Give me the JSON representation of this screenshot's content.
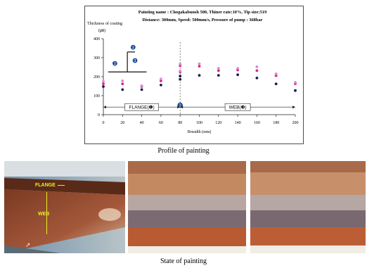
{
  "chart_data": {
    "type": "scatter",
    "header_line1": "Painting name : Chogakabunsh 500, Thiner rate:10%, Tip size:519",
    "header_line2": "Distance: 300mm, Speed: 500mm/s, Pressure of pump : 368bar",
    "ylabel": "Thickness of coating",
    "yunit": "(㎛)",
    "xlabel": "Breadth (mm)",
    "xlim": [
      0,
      200
    ],
    "ylim": [
      0,
      400
    ],
    "xticks": [
      "0",
      "20",
      "40",
      "60",
      "80",
      "100",
      "120",
      "140",
      "160",
      "180",
      "200"
    ],
    "yticks": [
      "0",
      "100",
      "200",
      "300",
      "400"
    ],
    "grid": false,
    "regions": [
      {
        "label": "FLANGE(❶)",
        "x_start": 0,
        "x_end": 80
      },
      {
        "label": "WEB(❸)",
        "x_start": 80,
        "x_end": 200
      }
    ],
    "divider_x": 80,
    "divider_marker": "❷",
    "inset_markers": [
      "❶",
      "❷",
      "❸"
    ],
    "series": [
      {
        "color": "#1a1a4d",
        "points": [
          [
            0,
            148
          ],
          [
            20,
            132
          ],
          [
            40,
            132
          ],
          [
            60,
            156
          ],
          [
            80,
            186
          ],
          [
            80,
            203
          ],
          [
            100,
            207
          ],
          [
            120,
            207
          ],
          [
            140,
            210
          ],
          [
            160,
            193
          ],
          [
            180,
            162
          ],
          [
            200,
            127
          ]
        ]
      },
      {
        "color": "#e0227a",
        "points": [
          [
            0,
            163
          ],
          [
            20,
            162
          ],
          [
            40,
            148
          ],
          [
            60,
            178
          ],
          [
            80,
            225
          ],
          [
            80,
            258
          ],
          [
            100,
            255
          ],
          [
            120,
            232
          ],
          [
            140,
            235
          ],
          [
            160,
            232
          ],
          [
            180,
            205
          ],
          [
            200,
            163
          ]
        ]
      },
      {
        "color": "#d68ad6",
        "points": [
          [
            0,
            175
          ],
          [
            20,
            178
          ],
          [
            40,
            152
          ],
          [
            60,
            188
          ],
          [
            80,
            230
          ],
          [
            80,
            266
          ],
          [
            100,
            268
          ],
          [
            120,
            244
          ],
          [
            140,
            244
          ],
          [
            160,
            252
          ],
          [
            180,
            215
          ],
          [
            200,
            170
          ]
        ]
      }
    ]
  },
  "captions": {
    "profile": "Profile of painting",
    "state": "State of painting"
  },
  "photo_labels": {
    "flange": "FLANGE",
    "web": "WEB"
  }
}
